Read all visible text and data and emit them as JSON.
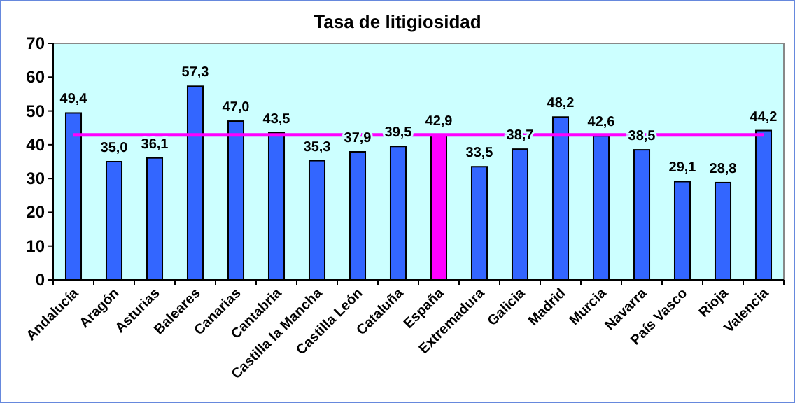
{
  "chart_data": {
    "type": "bar",
    "title": "Tasa de litigiosidad",
    "categories": [
      "Andalucía",
      "Aragón",
      "Asturias",
      "Baleares",
      "Canarias",
      "Cantabria",
      "Castilla la Mancha",
      "Castilla León",
      "Cataluña",
      "España",
      "Extremadura",
      "Galicia",
      "Madrid",
      "Murcia",
      "Navarra",
      "País Vasco",
      "Rioja",
      "Valencia"
    ],
    "values": [
      49.4,
      35.0,
      36.1,
      57.3,
      47.0,
      43.5,
      35.3,
      37.9,
      39.5,
      42.9,
      33.5,
      38.7,
      48.2,
      42.6,
      38.5,
      29.1,
      28.8,
      44.2
    ],
    "value_labels": [
      "49,4",
      "35,0",
      "36,1",
      "57,3",
      "47,0",
      "43,5",
      "35,3",
      "37,9",
      "39,5",
      "42,9",
      "33,5",
      "38,7",
      "48,2",
      "42,6",
      "38,5",
      "29,1",
      "28,8",
      "44,2"
    ],
    "colors": [
      "#3366ff",
      "#3366ff",
      "#3366ff",
      "#3366ff",
      "#3366ff",
      "#3366ff",
      "#3366ff",
      "#3366ff",
      "#3366ff",
      "#ff00ff",
      "#3366ff",
      "#3366ff",
      "#3366ff",
      "#3366ff",
      "#3366ff",
      "#3366ff",
      "#3366ff",
      "#3366ff"
    ],
    "ylim": [
      0,
      70
    ],
    "yticks": [
      0,
      10,
      20,
      30,
      40,
      50,
      60,
      70
    ],
    "grid": false,
    "ref_lines": [
      {
        "axis": "y",
        "value": 42.9,
        "color": "#ff00ff"
      }
    ]
  }
}
